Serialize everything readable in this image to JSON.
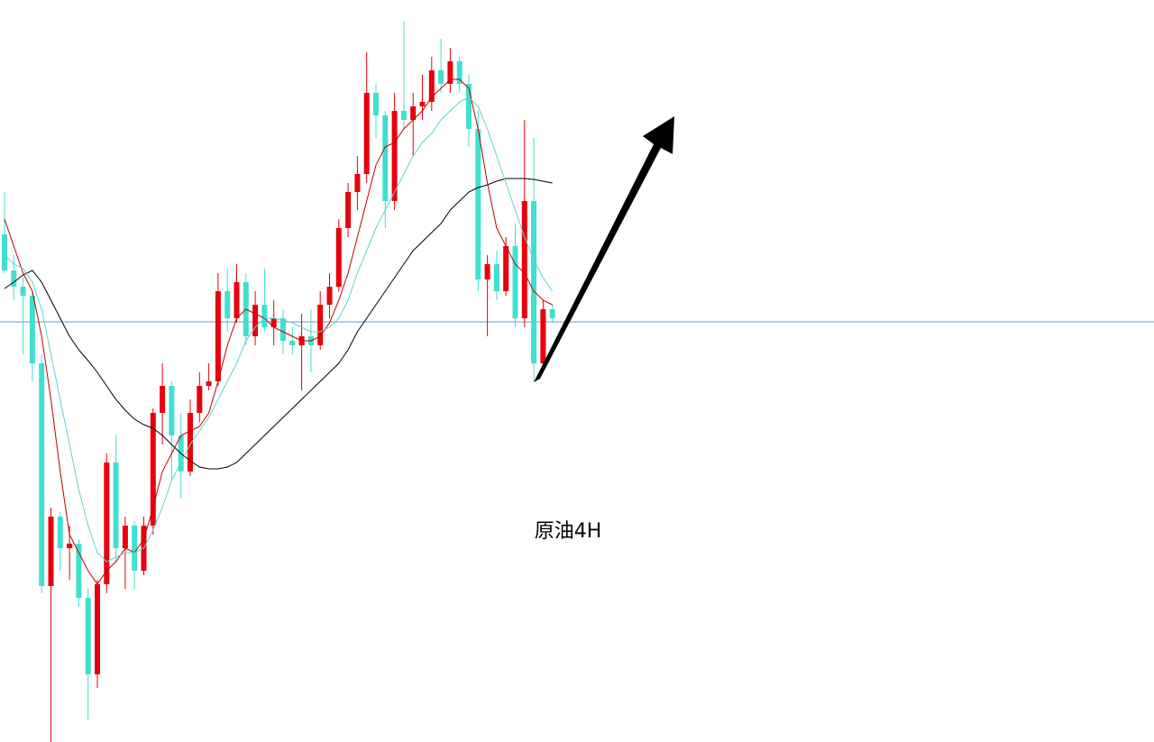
{
  "chart_data": {
    "type": "candlestick",
    "annotation": "原油4H",
    "ylim": [
      0,
      823
    ],
    "up_color": "#e8000b",
    "down_color": "#40e0d0",
    "hline": 466,
    "hline_color": "#6a9bc0",
    "open": [
      563,
      523,
      505,
      495,
      420,
      173,
      250,
      215,
      220,
      160,
      75,
      175,
      310,
      215,
      240,
      190,
      240,
      365,
      395,
      340,
      300,
      365,
      395,
      400,
      500,
      470,
      510,
      450,
      485,
      460,
      470,
      445,
      440,
      450,
      440,
      485,
      505,
      570,
      610,
      630,
      720,
      695,
      600,
      700,
      690,
      705,
      710,
      745,
      730,
      755,
      730,
      680,
      513,
      530,
      500,
      550,
      470,
      600,
      420,
      480
    ],
    "high": [
      610,
      540,
      515,
      500,
      430,
      260,
      255,
      240,
      225,
      170,
      180,
      320,
      340,
      250,
      245,
      250,
      370,
      420,
      400,
      365,
      380,
      410,
      420,
      520,
      525,
      530,
      520,
      500,
      525,
      490,
      480,
      460,
      475,
      480,
      500,
      520,
      580,
      620,
      650,
      765,
      730,
      700,
      720,
      800,
      720,
      740,
      760,
      780,
      770,
      760,
      740,
      700,
      540,
      545,
      560,
      575,
      690,
      670,
      490,
      485
    ],
    "low": [
      520,
      490,
      430,
      400,
      165,
      0,
      190,
      180,
      150,
      25,
      60,
      165,
      200,
      170,
      170,
      185,
      230,
      330,
      290,
      270,
      295,
      355,
      390,
      395,
      455,
      465,
      440,
      440,
      455,
      440,
      430,
      430,
      390,
      410,
      435,
      470,
      500,
      560,
      590,
      620,
      670,
      570,
      590,
      680,
      650,
      690,
      700,
      720,
      720,
      720,
      660,
      500,
      450,
      490,
      495,
      460,
      460,
      400,
      410,
      465
    ],
    "close": [
      523,
      505,
      495,
      420,
      173,
      250,
      215,
      220,
      160,
      75,
      175,
      310,
      215,
      240,
      190,
      240,
      365,
      395,
      340,
      300,
      365,
      395,
      400,
      500,
      470,
      510,
      450,
      485,
      460,
      470,
      445,
      440,
      450,
      440,
      485,
      505,
      570,
      610,
      630,
      720,
      695,
      600,
      700,
      690,
      705,
      710,
      745,
      730,
      755,
      730,
      680,
      513,
      530,
      500,
      550,
      470,
      600,
      420,
      480,
      470
    ],
    "lines": [
      {
        "color": "#000000",
        "values": [
          503,
          510,
          518,
          523,
          510,
          490,
          470,
          450,
          435,
          423,
          410,
          395,
          380,
          368,
          358,
          352,
          348,
          340,
          330,
          320,
          312,
          305,
          303,
          303,
          305,
          310,
          320,
          330,
          340,
          350,
          360,
          370,
          380,
          390,
          400,
          410,
          420,
          435,
          455,
          470,
          485,
          500,
          515,
          530,
          545,
          555,
          565,
          575,
          590,
          600,
          610,
          615,
          618,
          622,
          625,
          625,
          625,
          624,
          622,
          620
        ]
      },
      {
        "color": "#c00000",
        "values": [
          580,
          550,
          520,
          500,
          450,
          380,
          300,
          230,
          210,
          190,
          175,
          190,
          200,
          215,
          210,
          225,
          260,
          300,
          320,
          340,
          345,
          350,
          365,
          400,
          440,
          470,
          480,
          475,
          470,
          460,
          455,
          450,
          445,
          445,
          450,
          465,
          490,
          520,
          560,
          600,
          640,
          660,
          665,
          680,
          690,
          700,
          715,
          725,
          735,
          735,
          725,
          680,
          620,
          570,
          550,
          530,
          520,
          500,
          490,
          485
        ]
      },
      {
        "color": "#5fd3d0",
        "values": [
          540,
          530,
          525,
          510,
          480,
          430,
          380,
          330,
          280,
          240,
          210,
          200,
          205,
          210,
          210,
          215,
          235,
          260,
          290,
          310,
          330,
          345,
          360,
          380,
          400,
          420,
          445,
          460,
          470,
          470,
          468,
          465,
          460,
          455,
          455,
          460,
          470,
          490,
          520,
          545,
          570,
          590,
          610,
          630,
          650,
          665,
          675,
          690,
          700,
          710,
          715,
          705,
          680,
          650,
          620,
          590,
          560,
          535,
          515,
          500
        ]
      }
    ]
  }
}
